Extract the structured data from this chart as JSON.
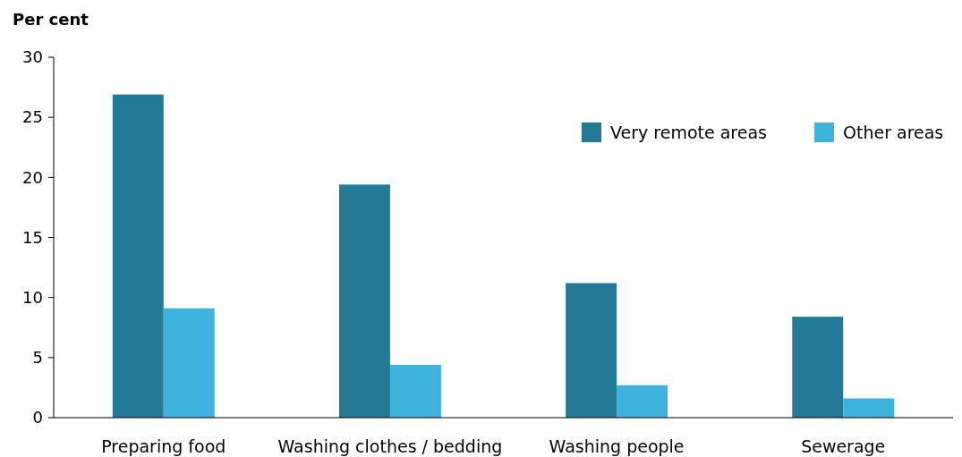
{
  "chart_data": {
    "type": "bar",
    "ylabel": "Per cent",
    "categories": [
      "Preparing food",
      "Washing clothes / bedding",
      "Washing people",
      "Sewerage"
    ],
    "series": [
      {
        "name": "Very remote areas",
        "color": "#237a96",
        "values": [
          26.9,
          19.4,
          11.2,
          8.4
        ]
      },
      {
        "name": "Other areas",
        "color": "#3db3de",
        "values": [
          9.1,
          4.4,
          2.7,
          1.6
        ]
      }
    ],
    "ylim": [
      0,
      30
    ],
    "yticks": [
      0,
      5,
      10,
      15,
      20,
      25,
      30
    ],
    "grid": false,
    "legend": "top right"
  }
}
